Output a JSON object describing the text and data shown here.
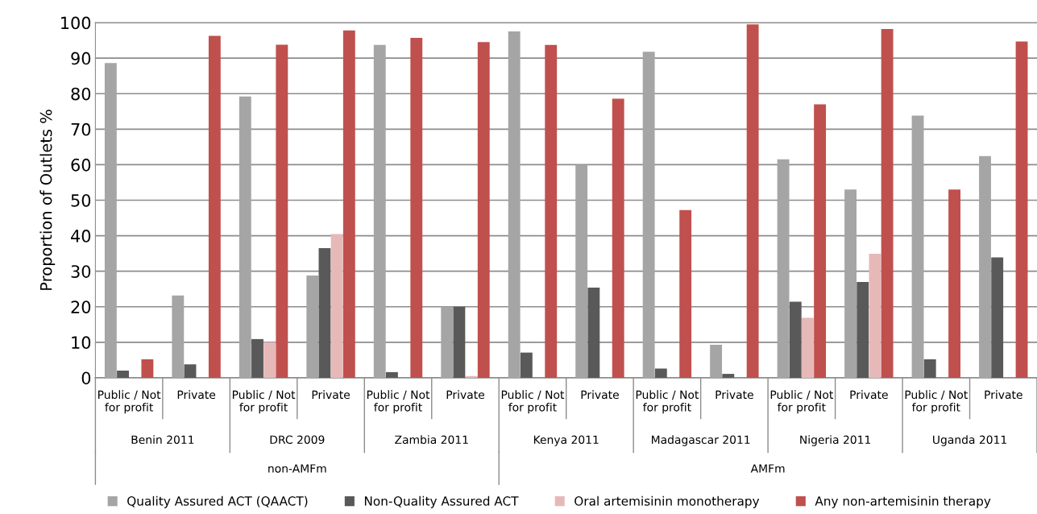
{
  "chart_data": {
    "type": "bar",
    "ylabel": "Proportion of Outlets %",
    "categories": [
      "Public / Not\nfor profit",
      "Private",
      "Public / Not\nfor profit",
      "Private",
      "Public / Not\nfor profit",
      "Private",
      "Public / Not\nfor profit",
      "Private",
      "Public / Not\nfor profit",
      "Private",
      "Public / Not\nfor profit",
      "Private",
      "Public / Not\nfor profit",
      "Private"
    ],
    "series": [
      {
        "name": "Quality Assured ACT (QAACT)",
        "color": "#a5a5a5",
        "values": [
          88.6,
          23.2,
          79.2,
          28.8,
          93.7,
          20,
          97.5,
          60,
          91.8,
          9.3,
          61.5,
          53,
          73.8,
          62.4
        ]
      },
      {
        "name": "Non-Quality Assured ACT",
        "color": "#595959",
        "values": [
          2,
          3.8,
          10.9,
          36.5,
          1.6,
          20,
          7.1,
          25.4,
          2.6,
          1.1,
          21.4,
          27,
          5.2,
          33.9
        ]
      },
      {
        "name": "Oral artemisinin monotherapy",
        "color": "#e6b9b8",
        "values": [
          0,
          null,
          10,
          40.5,
          0,
          0.5,
          0,
          null,
          0,
          null,
          16.9,
          34.9,
          0,
          null
        ]
      },
      {
        "name": "Any non-artemisinin therapy",
        "color": "#c0504d",
        "values": [
          5.2,
          96.3,
          93.8,
          97.8,
          95.7,
          94.5,
          93.7,
          78.6,
          47.2,
          99.5,
          77,
          98.2,
          53,
          94.7
        ]
      }
    ],
    "annotations": [
      "Benin 2011",
      "DRC 2009",
      "Zambia 2011",
      "Kenya 2011",
      "Madagascar 2011",
      "Nigeria 2011",
      "Uganda 2011",
      "non-AMFm",
      "AMFm"
    ],
    "ylim": [
      0,
      100
    ],
    "yticks": [
      0,
      10,
      20,
      30,
      40,
      50,
      60,
      70,
      80,
      90,
      100
    ],
    "grid": "y",
    "legend": "bottom"
  }
}
